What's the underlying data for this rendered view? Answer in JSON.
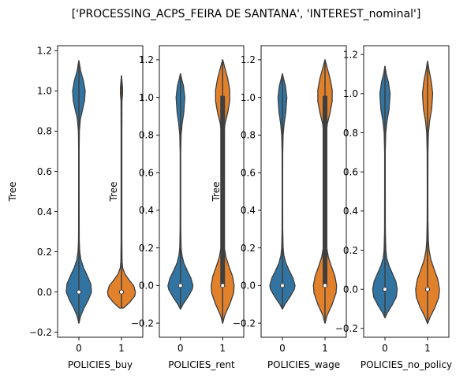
{
  "figure": {
    "title": "['PROCESSING_ACPS_FEIRA DE SANTANA', 'INTEREST_nominal']"
  },
  "colors": {
    "blue": "#3274a1",
    "orange": "#e1812c",
    "box": "#3f3f3f",
    "median": "#ffffff"
  },
  "chart_data": [
    {
      "type": "violin",
      "xlabel": "POLICIES_buy",
      "ylabel": "Tree",
      "categories": [
        "0",
        "1"
      ],
      "ylim": [
        -0.225,
        1.225
      ],
      "yticks": [
        -0.2,
        0.0,
        0.2,
        0.4,
        0.6,
        0.8,
        1.0,
        1.2
      ],
      "ytick_labels": [
        "−0.2",
        "0.0",
        "0.2",
        "0.4",
        "0.6",
        "0.8",
        "1.0",
        "1.2"
      ],
      "violins": [
        {
          "category": "0",
          "color": "blue",
          "min": -0.155,
          "max": 1.15,
          "median": 0.0,
          "q1": 0.0,
          "q3": 0.0,
          "profile": [
            [
              -0.155,
              0.005
            ],
            [
              -0.12,
              0.1
            ],
            [
              -0.08,
              0.3
            ],
            [
              -0.04,
              0.55
            ],
            [
              0.0,
              0.74
            ],
            [
              0.04,
              0.7
            ],
            [
              0.08,
              0.5
            ],
            [
              0.12,
              0.28
            ],
            [
              0.16,
              0.12
            ],
            [
              0.2,
              0.05
            ],
            [
              0.25,
              0.025
            ],
            [
              0.3,
              0.018
            ],
            [
              0.5,
              0.014
            ],
            [
              0.7,
              0.016
            ],
            [
              0.8,
              0.03
            ],
            [
              0.86,
              0.09
            ],
            [
              0.9,
              0.2
            ],
            [
              0.95,
              0.33
            ],
            [
              1.0,
              0.37
            ],
            [
              1.05,
              0.27
            ],
            [
              1.1,
              0.1
            ],
            [
              1.15,
              0.005
            ]
          ]
        },
        {
          "category": "1",
          "color": "orange",
          "min": -0.08,
          "max": 1.075,
          "median": 0.0,
          "q1": 0.0,
          "q3": 0.0,
          "profile": [
            [
              -0.08,
              0.12
            ],
            [
              -0.05,
              0.5
            ],
            [
              -0.02,
              0.78
            ],
            [
              0.0,
              0.82
            ],
            [
              0.03,
              0.72
            ],
            [
              0.06,
              0.45
            ],
            [
              0.09,
              0.2
            ],
            [
              0.12,
              0.07
            ],
            [
              0.15,
              0.035
            ],
            [
              0.25,
              0.025
            ],
            [
              0.5,
              0.025
            ],
            [
              0.8,
              0.025
            ],
            [
              0.95,
              0.03
            ],
            [
              0.98,
              0.06
            ],
            [
              1.0,
              0.065
            ],
            [
              1.02,
              0.06
            ],
            [
              1.05,
              0.03
            ],
            [
              1.075,
              0.005
            ]
          ]
        }
      ]
    },
    {
      "type": "violin",
      "xlabel": "POLICIES_rent",
      "ylabel": "Tree",
      "categories": [
        "0",
        "1"
      ],
      "ylim": [
        -0.275,
        1.275
      ],
      "yticks": [
        -0.2,
        0.0,
        0.2,
        0.4,
        0.6,
        0.8,
        1.0,
        1.2
      ],
      "ytick_labels": [
        "−0.2",
        "0.0",
        "0.2",
        "0.4",
        "0.6",
        "0.8",
        "1.0",
        "1.2"
      ],
      "violins": [
        {
          "category": "0",
          "color": "blue",
          "min": -0.125,
          "max": 1.125,
          "median": 0.0,
          "q1": 0.0,
          "q3": 0.0,
          "profile": [
            [
              -0.125,
              0.005
            ],
            [
              -0.1,
              0.15
            ],
            [
              -0.06,
              0.45
            ],
            [
              -0.02,
              0.7
            ],
            [
              0.0,
              0.74
            ],
            [
              0.04,
              0.62
            ],
            [
              0.08,
              0.4
            ],
            [
              0.12,
              0.2
            ],
            [
              0.16,
              0.09
            ],
            [
              0.2,
              0.04
            ],
            [
              0.3,
              0.02
            ],
            [
              0.5,
              0.016
            ],
            [
              0.7,
              0.018
            ],
            [
              0.8,
              0.04
            ],
            [
              0.86,
              0.1
            ],
            [
              0.92,
              0.2
            ],
            [
              1.0,
              0.26
            ],
            [
              1.06,
              0.18
            ],
            [
              1.1,
              0.07
            ],
            [
              1.125,
              0.005
            ]
          ]
        },
        {
          "category": "1",
          "color": "orange",
          "min": -0.2,
          "max": 1.2,
          "median": 0.0,
          "q1": 0.0,
          "q3": 1.0,
          "profile": [
            [
              -0.2,
              0.005
            ],
            [
              -0.16,
              0.12
            ],
            [
              -0.1,
              0.42
            ],
            [
              -0.04,
              0.65
            ],
            [
              0.0,
              0.68
            ],
            [
              0.05,
              0.58
            ],
            [
              0.1,
              0.38
            ],
            [
              0.15,
              0.2
            ],
            [
              0.2,
              0.1
            ],
            [
              0.25,
              0.05
            ],
            [
              0.35,
              0.03
            ],
            [
              0.5,
              0.026
            ],
            [
              0.7,
              0.03
            ],
            [
              0.8,
              0.06
            ],
            [
              0.86,
              0.14
            ],
            [
              0.92,
              0.3
            ],
            [
              0.98,
              0.42
            ],
            [
              1.04,
              0.42
            ],
            [
              1.1,
              0.3
            ],
            [
              1.15,
              0.15
            ],
            [
              1.2,
              0.005
            ]
          ]
        }
      ]
    },
    {
      "type": "violin",
      "xlabel": "POLICIES_wage",
      "ylabel": "Tree",
      "categories": [
        "0",
        "1"
      ],
      "ylim": [
        -0.275,
        1.275
      ],
      "yticks": [
        -0.2,
        0.0,
        0.2,
        0.4,
        0.6,
        0.8,
        1.0,
        1.2
      ],
      "ytick_labels": [
        "−0.2",
        "0.0",
        "0.2",
        "0.4",
        "0.6",
        "0.8",
        "1.0",
        "1.2"
      ],
      "violins": [
        {
          "category": "0",
          "color": "blue",
          "min": -0.125,
          "max": 1.125,
          "median": 0.0,
          "q1": 0.0,
          "q3": 0.0,
          "profile": [
            [
              -0.125,
              0.005
            ],
            [
              -0.1,
              0.15
            ],
            [
              -0.06,
              0.45
            ],
            [
              -0.02,
              0.7
            ],
            [
              0.0,
              0.74
            ],
            [
              0.04,
              0.62
            ],
            [
              0.08,
              0.4
            ],
            [
              0.12,
              0.2
            ],
            [
              0.16,
              0.09
            ],
            [
              0.2,
              0.04
            ],
            [
              0.3,
              0.02
            ],
            [
              0.5,
              0.016
            ],
            [
              0.7,
              0.018
            ],
            [
              0.8,
              0.04
            ],
            [
              0.86,
              0.1
            ],
            [
              0.92,
              0.2
            ],
            [
              1.0,
              0.26
            ],
            [
              1.06,
              0.18
            ],
            [
              1.1,
              0.07
            ],
            [
              1.125,
              0.005
            ]
          ]
        },
        {
          "category": "1",
          "color": "orange",
          "min": -0.2,
          "max": 1.2,
          "median": 0.0,
          "q1": 0.0,
          "q3": 1.0,
          "profile": [
            [
              -0.2,
              0.005
            ],
            [
              -0.16,
              0.12
            ],
            [
              -0.1,
              0.42
            ],
            [
              -0.04,
              0.65
            ],
            [
              0.0,
              0.68
            ],
            [
              0.05,
              0.58
            ],
            [
              0.1,
              0.38
            ],
            [
              0.15,
              0.2
            ],
            [
              0.2,
              0.1
            ],
            [
              0.25,
              0.05
            ],
            [
              0.35,
              0.03
            ],
            [
              0.5,
              0.026
            ],
            [
              0.7,
              0.03
            ],
            [
              0.8,
              0.06
            ],
            [
              0.86,
              0.14
            ],
            [
              0.92,
              0.3
            ],
            [
              0.98,
              0.42
            ],
            [
              1.04,
              0.42
            ],
            [
              1.1,
              0.3
            ],
            [
              1.15,
              0.15
            ],
            [
              1.2,
              0.005
            ]
          ]
        }
      ]
    },
    {
      "type": "violin",
      "xlabel": "POLICIES_no_policy",
      "ylabel": "",
      "categories": [
        "0",
        "1"
      ],
      "ylim": [
        -0.245,
        1.245
      ],
      "yticks": [
        -0.2,
        0.0,
        0.2,
        0.4,
        0.6,
        0.8,
        1.0,
        1.2
      ],
      "ytick_labels": [
        "−0.2",
        "0.0",
        "0.2",
        "0.4",
        "0.6",
        "0.8",
        "1.0",
        "1.2"
      ],
      "violins": [
        {
          "category": "0",
          "color": "blue",
          "min": -0.145,
          "max": 1.14,
          "median": 0.0,
          "q1": 0.0,
          "q3": 0.0,
          "profile": [
            [
              -0.145,
              0.005
            ],
            [
              -0.12,
              0.14
            ],
            [
              -0.08,
              0.42
            ],
            [
              -0.04,
              0.66
            ],
            [
              0.0,
              0.72
            ],
            [
              0.04,
              0.64
            ],
            [
              0.08,
              0.44
            ],
            [
              0.12,
              0.24
            ],
            [
              0.16,
              0.1
            ],
            [
              0.2,
              0.05
            ],
            [
              0.3,
              0.025
            ],
            [
              0.5,
              0.018
            ],
            [
              0.7,
              0.02
            ],
            [
              0.8,
              0.045
            ],
            [
              0.86,
              0.12
            ],
            [
              0.92,
              0.24
            ],
            [
              1.0,
              0.3
            ],
            [
              1.06,
              0.2
            ],
            [
              1.1,
              0.08
            ],
            [
              1.14,
              0.005
            ]
          ]
        },
        {
          "category": "1",
          "color": "orange",
          "min": -0.175,
          "max": 1.165,
          "median": 0.0,
          "q1": 0.0,
          "q3": 0.0,
          "profile": [
            [
              -0.175,
              0.005
            ],
            [
              -0.14,
              0.16
            ],
            [
              -0.09,
              0.45
            ],
            [
              -0.04,
              0.66
            ],
            [
              0.0,
              0.7
            ],
            [
              0.05,
              0.6
            ],
            [
              0.1,
              0.4
            ],
            [
              0.15,
              0.2
            ],
            [
              0.2,
              0.09
            ],
            [
              0.25,
              0.045
            ],
            [
              0.35,
              0.025
            ],
            [
              0.5,
              0.02
            ],
            [
              0.7,
              0.022
            ],
            [
              0.8,
              0.05
            ],
            [
              0.86,
              0.12
            ],
            [
              0.92,
              0.24
            ],
            [
              1.0,
              0.3
            ],
            [
              1.06,
              0.22
            ],
            [
              1.12,
              0.09
            ],
            [
              1.165,
              0.005
            ]
          ]
        }
      ]
    }
  ]
}
